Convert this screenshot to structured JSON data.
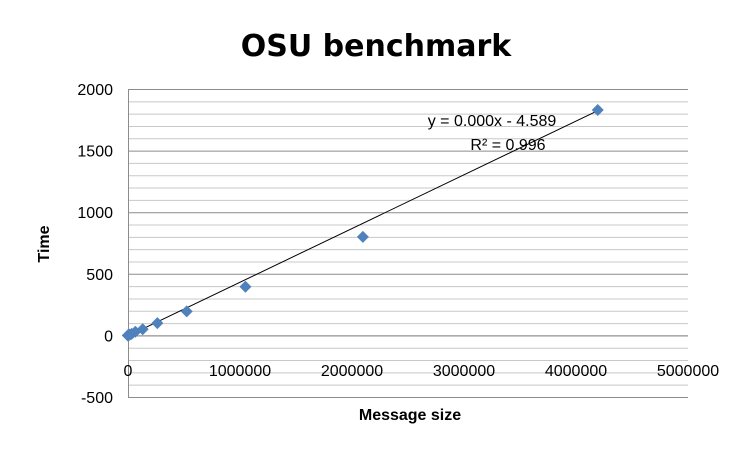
{
  "chart_data": {
    "type": "scatter",
    "title": "OSU benchmark",
    "xlabel": "Message size",
    "ylabel": "Time",
    "xlim": [
      0,
      5000000
    ],
    "ylim": [
      -500,
      2000
    ],
    "xticks": [
      0,
      1000000,
      2000000,
      3000000,
      4000000,
      5000000
    ],
    "xtick_labels": [
      "0",
      "1000000",
      "2000000",
      "3000000",
      "4000000",
      "5000000"
    ],
    "yticks": [
      -500,
      0,
      500,
      1000,
      1500,
      2000
    ],
    "ytick_labels": [
      "-500",
      "0",
      "500",
      "1000",
      "1500",
      "2000"
    ],
    "y_minor_step": 100,
    "grid": true,
    "legend": "none",
    "series": [
      {
        "marker": "diamond",
        "color": "#4f81bd",
        "x": [
          4,
          8,
          16,
          32,
          64,
          128,
          256,
          512,
          1024,
          2048,
          4096,
          8192,
          16384,
          32768,
          65536,
          131072,
          262144,
          524288,
          1048576,
          2097152,
          4194304
        ],
        "y": [
          0,
          0,
          0,
          0,
          0,
          0,
          0,
          0,
          1,
          1,
          2,
          3,
          6,
          12,
          30,
          50,
          100,
          195,
          395,
          800,
          1830
        ]
      }
    ],
    "trendline": {
      "type": "linear",
      "slope": 0.000436,
      "intercept": -4.589,
      "color": "#000000",
      "equation": "y = 0.000x - 4.589",
      "r_squared": "R² = 0.996"
    }
  }
}
